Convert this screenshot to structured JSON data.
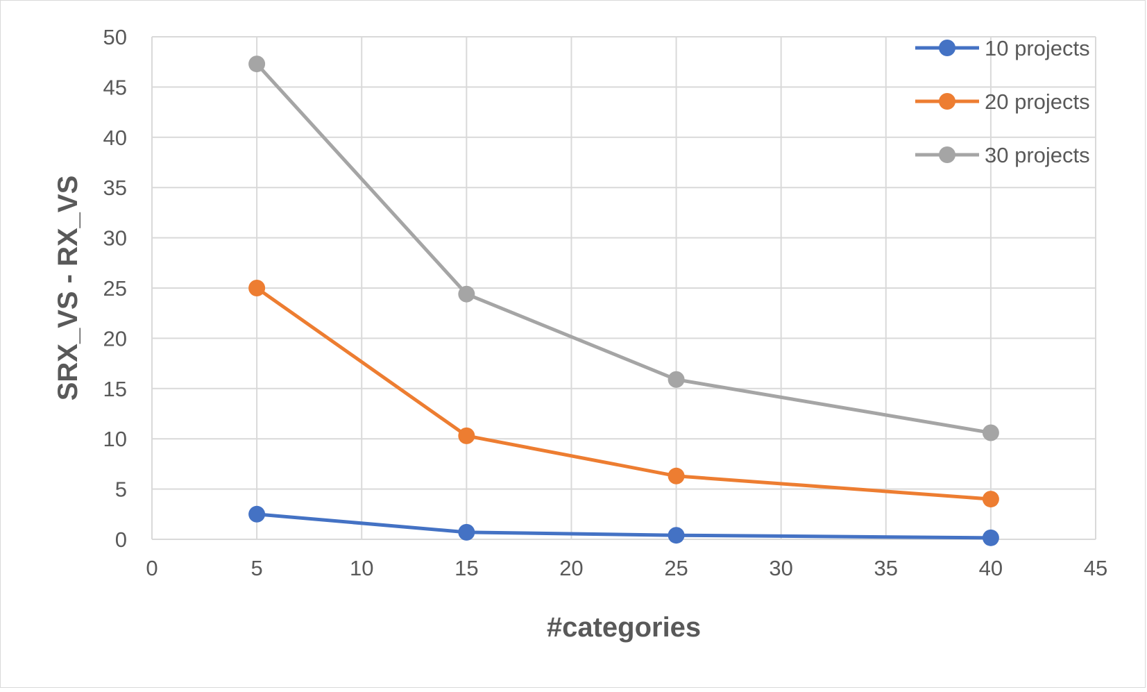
{
  "chart_data": {
    "type": "line",
    "title": "",
    "xlabel": "#categories",
    "ylabel": "SRX_VS - RX_VS",
    "xlim": [
      0,
      45
    ],
    "ylim": [
      0,
      50
    ],
    "x_ticks": [
      0,
      5,
      10,
      15,
      20,
      25,
      30,
      35,
      40,
      45
    ],
    "y_ticks": [
      0,
      5,
      10,
      15,
      20,
      25,
      30,
      35,
      40,
      45,
      50
    ],
    "grid": true,
    "legend_position": "top-right",
    "x": [
      5,
      15,
      25,
      40
    ],
    "series": [
      {
        "name": "10 projects",
        "color": "#4472c4",
        "values": [
          2.5,
          0.7,
          0.4,
          0.15
        ]
      },
      {
        "name": "20 projects",
        "color": "#ed7d31",
        "values": [
          25,
          10.3,
          6.3,
          4.0
        ]
      },
      {
        "name": "30 projects",
        "color": "#a5a5a5",
        "values": [
          47.3,
          24.4,
          15.9,
          10.6
        ]
      }
    ]
  }
}
